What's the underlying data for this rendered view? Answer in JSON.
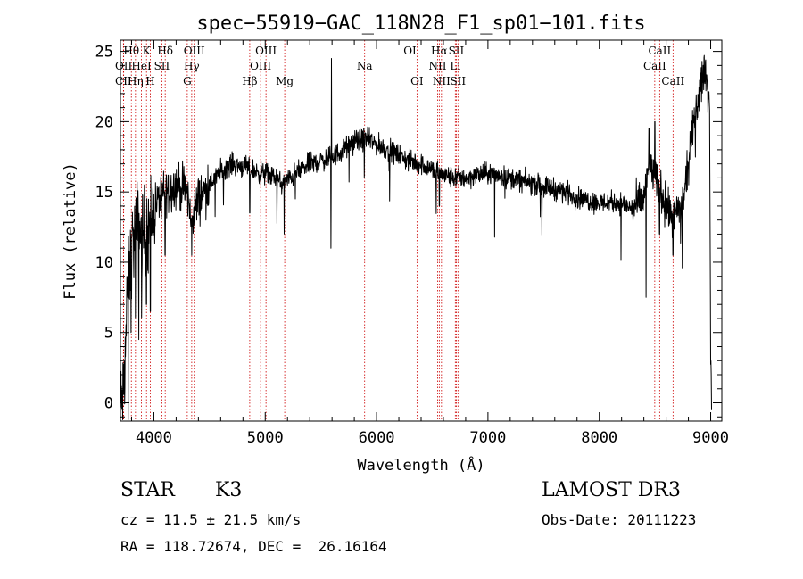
{
  "chart_data": {
    "type": "line",
    "title": "spec−55919−GAC_118N28_F1_sp01−101.fits",
    "xlabel": "Wavelength (Å)",
    "ylabel": "Flux (relative)",
    "xlim": [
      3700,
      9100
    ],
    "ylim": [
      -1.3,
      25.8
    ],
    "xticks": [
      4000,
      5000,
      6000,
      7000,
      8000,
      9000
    ],
    "yticks": [
      0,
      5,
      10,
      15,
      20,
      25
    ],
    "grid": false,
    "series": [
      {
        "name": "flux",
        "color": "#000000",
        "continuum": [
          [
            3700,
            -0.5
          ],
          [
            3730,
            1
          ],
          [
            3760,
            7
          ],
          [
            3800,
            11
          ],
          [
            3850,
            12.5
          ],
          [
            3900,
            12
          ],
          [
            3950,
            12.5
          ],
          [
            4000,
            14
          ],
          [
            4050,
            14.5
          ],
          [
            4100,
            15
          ],
          [
            4200,
            15.5
          ],
          [
            4300,
            15
          ],
          [
            4330,
            13
          ],
          [
            4400,
            14.5
          ],
          [
            4500,
            15.5
          ],
          [
            4600,
            16.5
          ],
          [
            4700,
            17
          ],
          [
            4800,
            16.8
          ],
          [
            4900,
            16.5
          ],
          [
            5000,
            16.3
          ],
          [
            5100,
            16
          ],
          [
            5150,
            15.5
          ],
          [
            5200,
            15.8
          ],
          [
            5300,
            16.5
          ],
          [
            5400,
            17
          ],
          [
            5500,
            17.2
          ],
          [
            5600,
            17.5
          ],
          [
            5700,
            18
          ],
          [
            5800,
            18.6
          ],
          [
            5900,
            18.8
          ],
          [
            6000,
            18.4
          ],
          [
            6100,
            18
          ],
          [
            6200,
            17.6
          ],
          [
            6300,
            17.2
          ],
          [
            6400,
            17
          ],
          [
            6500,
            16.6
          ],
          [
            6600,
            16.2
          ],
          [
            6700,
            16
          ],
          [
            6800,
            16
          ],
          [
            6900,
            16.2
          ],
          [
            7000,
            16.3
          ],
          [
            7100,
            16.2
          ],
          [
            7200,
            16
          ],
          [
            7300,
            15.8
          ],
          [
            7400,
            15.6
          ],
          [
            7500,
            15.4
          ],
          [
            7600,
            15.2
          ],
          [
            7700,
            15
          ],
          [
            7800,
            14.6
          ],
          [
            7900,
            14.4
          ],
          [
            8000,
            14.2
          ],
          [
            8100,
            14.3
          ],
          [
            8200,
            14.2
          ],
          [
            8300,
            13.8
          ],
          [
            8400,
            14.5
          ],
          [
            8450,
            17
          ],
          [
            8500,
            16
          ],
          [
            8560,
            15
          ],
          [
            8600,
            14
          ],
          [
            8650,
            13
          ],
          [
            8700,
            13.5
          ],
          [
            8750,
            14
          ],
          [
            8800,
            17
          ],
          [
            8850,
            20
          ],
          [
            8900,
            22
          ],
          [
            8950,
            24
          ],
          [
            8990,
            21
          ],
          [
            9000,
            4
          ],
          [
            9010,
            -0.5
          ]
        ],
        "features": [
          [
            3770,
            -2.5
          ],
          [
            3795,
            5
          ],
          [
            3835,
            6
          ],
          [
            3865,
            4.5
          ],
          [
            3890,
            6
          ],
          [
            3933,
            7
          ],
          [
            3968,
            6.5
          ],
          [
            4102,
            10.5
          ],
          [
            4340,
            10.5
          ],
          [
            4385,
            13
          ],
          [
            4861,
            13.5
          ],
          [
            5170,
            12
          ],
          [
            5270,
            14.5
          ],
          [
            5590,
            11
          ],
          [
            5595,
            24.5
          ],
          [
            5890,
            16
          ],
          [
            6563,
            14
          ],
          [
            8420,
            7.5
          ],
          [
            8447,
            19.5
          ],
          [
            8498,
            20
          ],
          [
            8542,
            12
          ],
          [
            8662,
            10.5
          ]
        ]
      }
    ],
    "lines": [
      {
        "name": "CII",
        "wavelength": 3727,
        "row": 2
      },
      {
        "name": "OII",
        "wavelength": 3729,
        "row": 1
      },
      {
        "name": "Hθ",
        "wavelength": 3798,
        "row": 0
      },
      {
        "name": "Hη",
        "wavelength": 3835,
        "row": 2
      },
      {
        "name": "HeI",
        "wavelength": 3889,
        "row": 1
      },
      {
        "name": "K",
        "wavelength": 3934,
        "row": 0
      },
      {
        "name": "H",
        "wavelength": 3968,
        "row": 2
      },
      {
        "name": "SII",
        "wavelength": 4072,
        "row": 1
      },
      {
        "name": "Hδ",
        "wavelength": 4102,
        "row": 0
      },
      {
        "name": "G",
        "wavelength": 4300,
        "row": 2
      },
      {
        "name": "Hγ",
        "wavelength": 4340,
        "row": 1
      },
      {
        "name": "OIII",
        "wavelength": 4363,
        "row": 0
      },
      {
        "name": "Hβ",
        "wavelength": 4861,
        "row": 2
      },
      {
        "name": "OIII",
        "wavelength": 4959,
        "row": 1
      },
      {
        "name": "OIII",
        "wavelength": 5007,
        "row": 0
      },
      {
        "name": "Mg",
        "wavelength": 5175,
        "row": 2
      },
      {
        "name": "Na",
        "wavelength": 5893,
        "row": 1
      },
      {
        "name": "OI",
        "wavelength": 6300,
        "row": 0
      },
      {
        "name": "OI",
        "wavelength": 6363,
        "row": 2
      },
      {
        "name": "NII",
        "wavelength": 6548,
        "row": 1
      },
      {
        "name": "Hα",
        "wavelength": 6563,
        "row": 0
      },
      {
        "name": "NII",
        "wavelength": 6583,
        "row": 2
      },
      {
        "name": "Li",
        "wavelength": 6707,
        "row": 1
      },
      {
        "name": "SII",
        "wavelength": 6716,
        "row": 0
      },
      {
        "name": "SII",
        "wavelength": 6731,
        "row": 2
      },
      {
        "name": "CaII",
        "wavelength": 8498,
        "row": 1
      },
      {
        "name": "CaII",
        "wavelength": 8542,
        "row": 0
      },
      {
        "name": "CaII",
        "wavelength": 8662,
        "row": 2
      }
    ]
  },
  "info": {
    "object_class": "STAR",
    "subclass": "K3",
    "redshift": "cz = 11.5 ± 21.5 km/s",
    "coords": "RA = 118.72674, DEC =  26.16164",
    "survey": "LAMOST DR3",
    "obs_date": "Obs-Date: 20111223"
  }
}
